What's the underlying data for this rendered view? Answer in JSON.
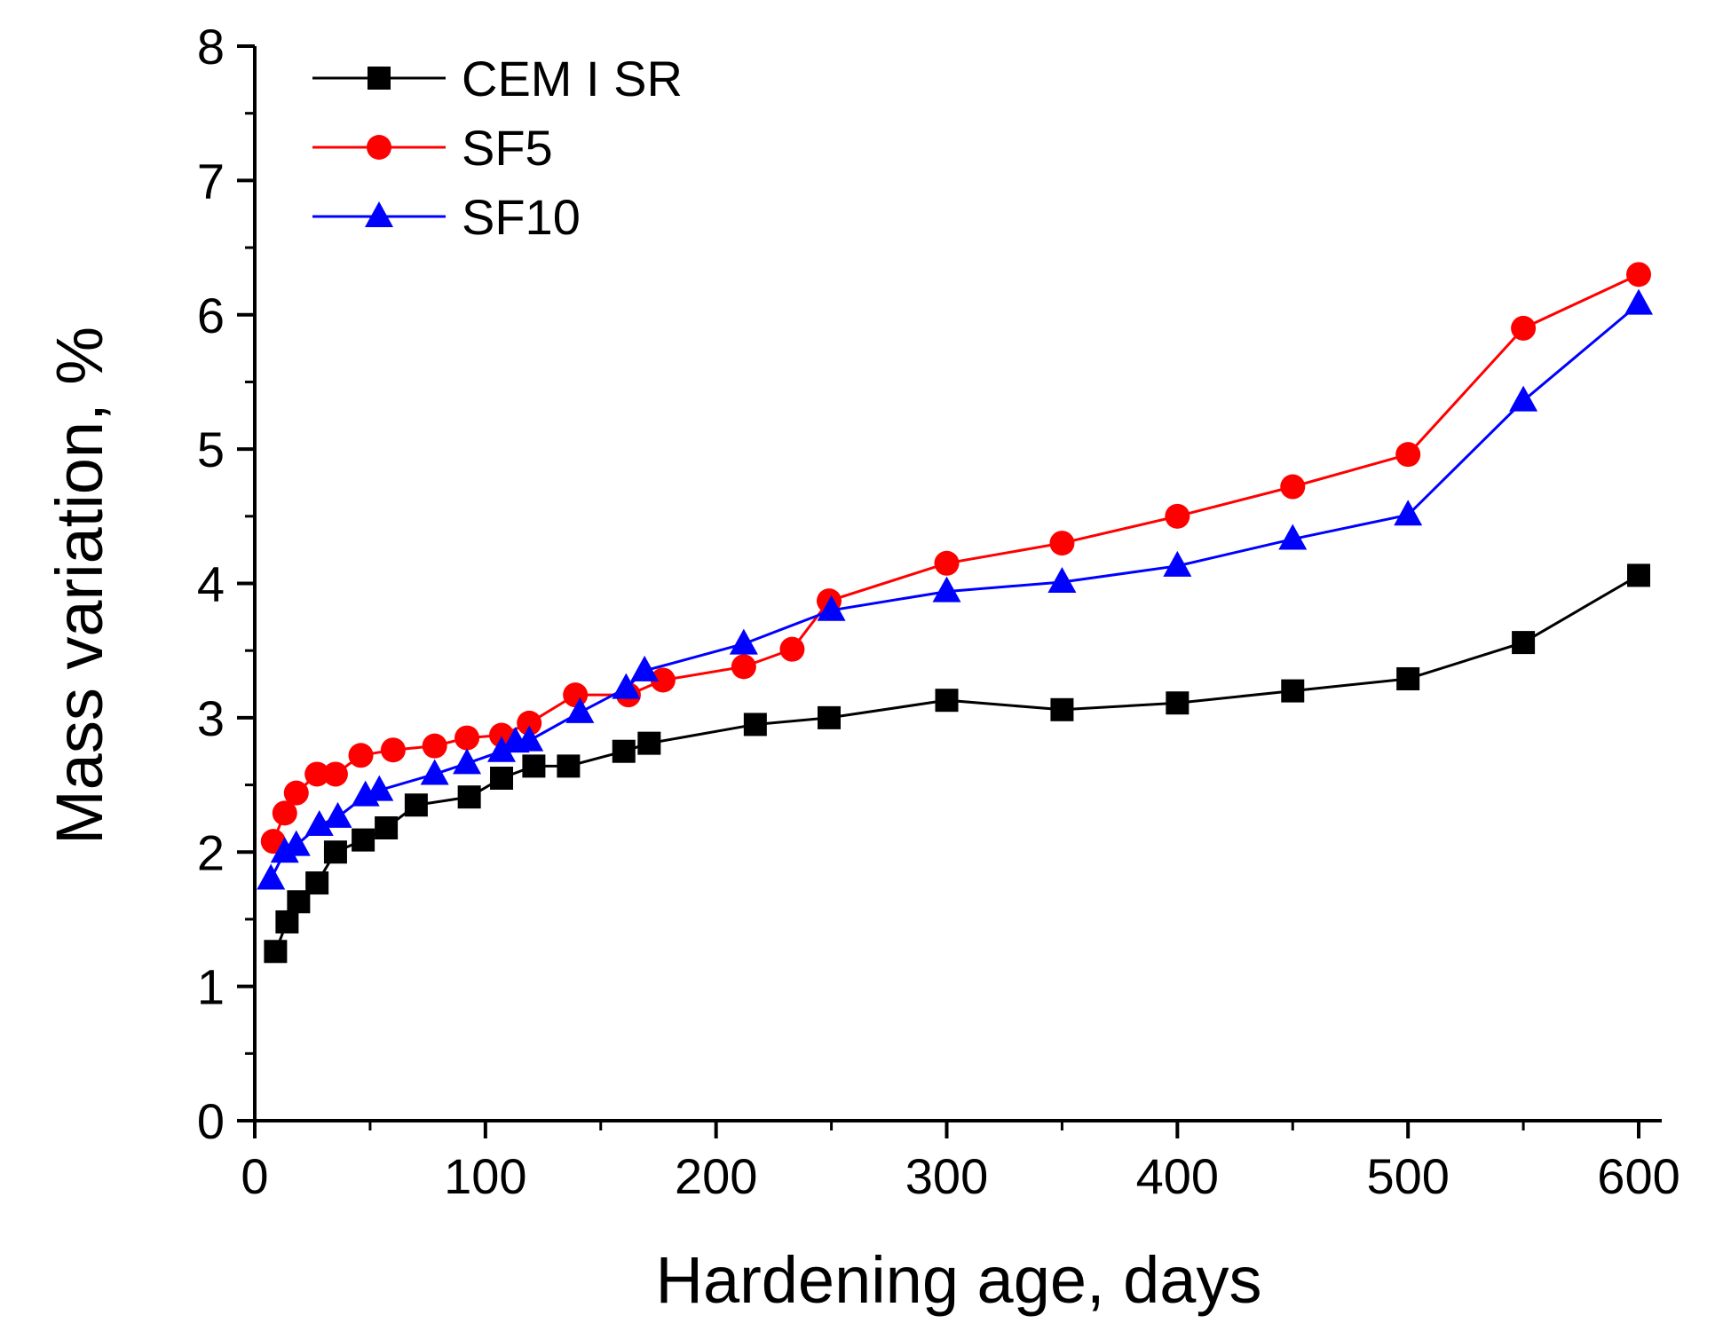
{
  "chart_data": {
    "type": "line",
    "title": "",
    "xlabel": "Hardening age, days",
    "ylabel": "Mass variation, %",
    "xlim": [
      0,
      610
    ],
    "ylim": [
      0,
      8
    ],
    "xticks": [
      "0",
      "100",
      "200",
      "300",
      "400",
      "500",
      "600"
    ],
    "yticks": [
      "0",
      "1",
      "2",
      "3",
      "4",
      "5",
      "6",
      "7",
      "8"
    ],
    "grid": false,
    "legend_position": "top-left",
    "series": [
      {
        "name": "CEM I SR",
        "color": "#000000",
        "marker": "square",
        "x": [
          9,
          14,
          19,
          27,
          35,
          47,
          57,
          70,
          93,
          107,
          121,
          136,
          160,
          171,
          217,
          249,
          300,
          350,
          400,
          450,
          500,
          550,
          600
        ],
        "y": [
          1.26,
          1.48,
          1.63,
          1.77,
          2.0,
          2.09,
          2.18,
          2.35,
          2.41,
          2.55,
          2.64,
          2.64,
          2.75,
          2.81,
          2.95,
          3.0,
          3.13,
          3.06,
          3.11,
          3.2,
          3.29,
          3.56,
          4.06
        ]
      },
      {
        "name": "SF5",
        "color": "#ff0000",
        "marker": "circle",
        "x": [
          8,
          13,
          18,
          27,
          35,
          46,
          60,
          78,
          92,
          107,
          119,
          139,
          162,
          177,
          212,
          233,
          249,
          300,
          350,
          400,
          450,
          500,
          550,
          600
        ],
        "y": [
          2.08,
          2.29,
          2.44,
          2.58,
          2.58,
          2.72,
          2.76,
          2.79,
          2.85,
          2.87,
          2.96,
          3.17,
          3.17,
          3.28,
          3.38,
          3.51,
          3.87,
          4.15,
          4.3,
          4.5,
          4.72,
          4.96,
          5.9,
          6.3
        ]
      },
      {
        "name": "SF10",
        "color": "#0000ff",
        "marker": "triangle",
        "x": [
          7,
          13,
          18,
          28,
          36,
          48,
          54,
          78,
          92,
          107,
          113,
          119,
          141,
          161,
          169,
          212,
          250,
          300,
          350,
          400,
          450,
          500,
          550,
          600
        ],
        "y": [
          1.8,
          2.0,
          2.05,
          2.2,
          2.26,
          2.42,
          2.46,
          2.58,
          2.66,
          2.75,
          2.82,
          2.83,
          3.04,
          3.22,
          3.35,
          3.55,
          3.8,
          3.94,
          4.01,
          4.13,
          4.33,
          4.51,
          5.36,
          6.08
        ]
      }
    ]
  }
}
